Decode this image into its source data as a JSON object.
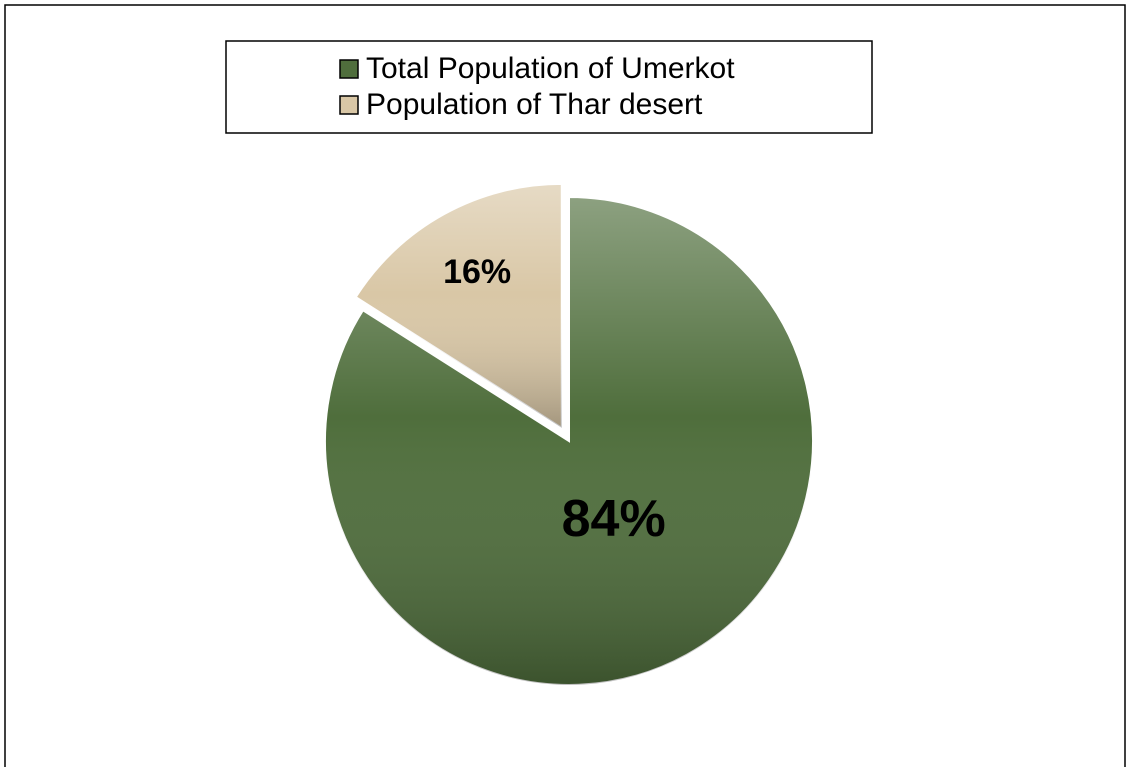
{
  "chart_data": {
    "type": "pie",
    "categories": [
      "Total Population of Umerkot",
      "Population of Thar desert"
    ],
    "values": [
      84,
      16
    ],
    "value_labels": [
      "84%",
      "16%"
    ],
    "colors": [
      "#4f6e3c",
      "#d9c7a6"
    ],
    "legend": "top"
  }
}
